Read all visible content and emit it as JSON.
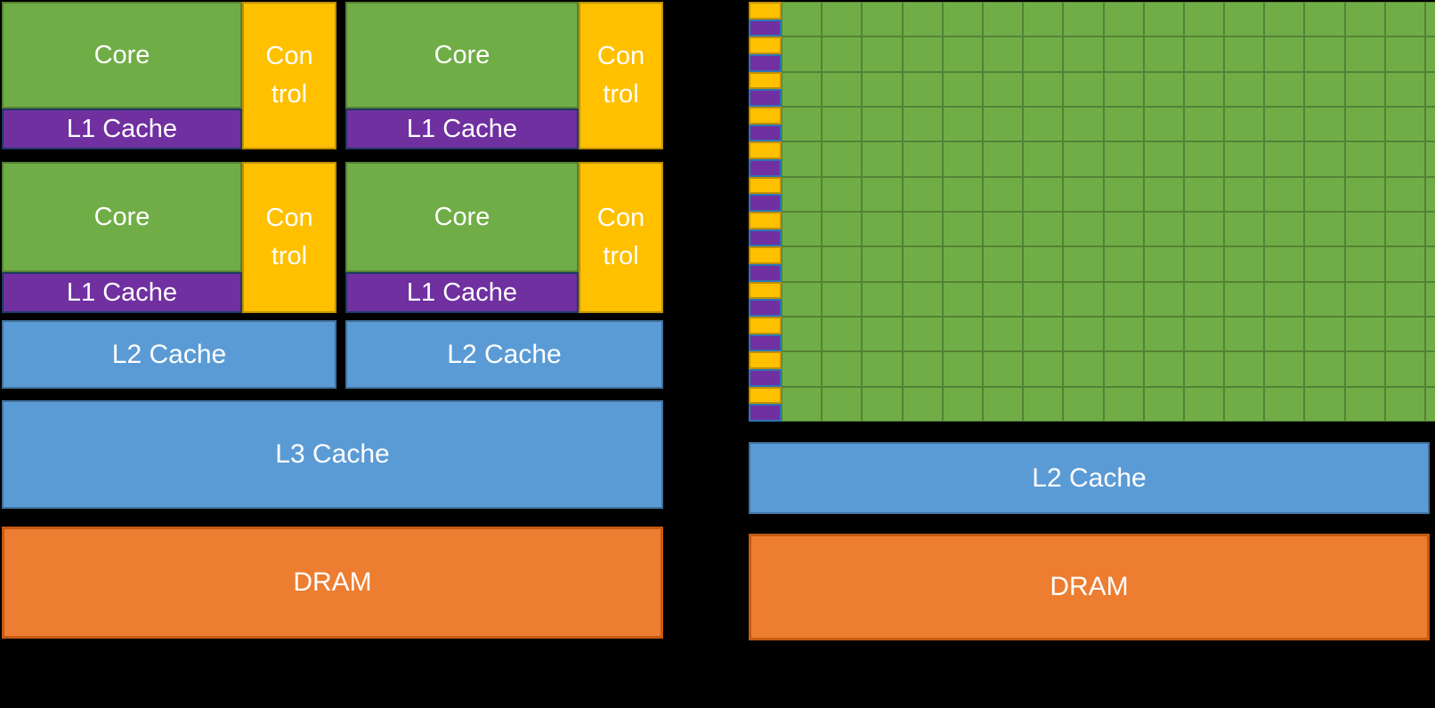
{
  "colors": {
    "background": "#000000",
    "core_green": "#70AD47",
    "core_green_border": "#548235",
    "control_gold": "#FFC000",
    "control_gold_border": "#BF9000",
    "cache_purple": "#7030A0",
    "cpu_l1_border": "#1F3864",
    "gpu_l1_border": "#2E75B6",
    "cache_blue": "#5B9BD5",
    "cache_blue_border": "#41719C",
    "dram_orange": "#ED7D31",
    "dram_orange_border": "#C55A11"
  },
  "cpu_diagram": {
    "unit_rows": 2,
    "unit_cols": 2,
    "core_label": "Core",
    "control_lines": [
      "Con",
      "trol"
    ],
    "l1_label": "L1 Cache",
    "l2_label": "L2 Cache",
    "l3_label": "L3 Cache",
    "dram_label": "DRAM"
  },
  "gpu_diagram": {
    "rows": 12,
    "cols": 17,
    "l2_label": "L2 Cache",
    "dram_label": "DRAM"
  }
}
